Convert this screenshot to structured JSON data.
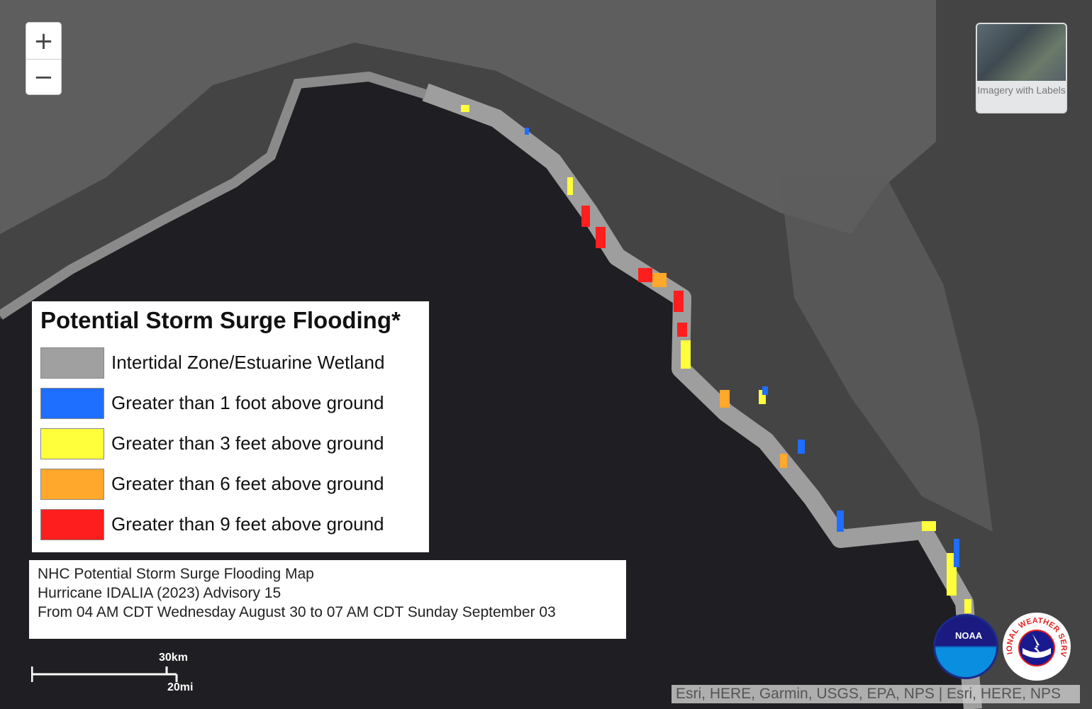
{
  "zoom": {
    "in_label": "+",
    "out_label": "−"
  },
  "basemap": {
    "label": "Imagery with Labels"
  },
  "legend": {
    "title": "Potential Storm Surge Flooding*",
    "items": [
      {
        "label": "Intertidal Zone/Estuarine Wetland",
        "color": "#a0a0a0"
      },
      {
        "label": "Greater than 1 foot above ground",
        "color": "#1e6eff"
      },
      {
        "label": "Greater than 3 feet above ground",
        "color": "#ffff3c"
      },
      {
        "label": "Greater than 6 feet above ground",
        "color": "#ffa82c"
      },
      {
        "label": "Greater than 9 feet above ground",
        "color": "#ff1e1e"
      }
    ]
  },
  "info": {
    "line1": "NHC Potential Storm Surge Flooding Map",
    "line2": "Hurricane IDALIA (2023) Advisory 15",
    "line3": "From 04 AM CDT Wednesday August 30 to 07 AM CDT Sunday September 03"
  },
  "scale": {
    "km": "30km",
    "mi": "20mi"
  },
  "attribution": "Esri, HERE, Garmin, USGS, EPA, NPS | Esri, HERE, NPS",
  "logos": {
    "noaa": "NOAA",
    "nws": "NATIONAL WEATHER SERVICE"
  }
}
